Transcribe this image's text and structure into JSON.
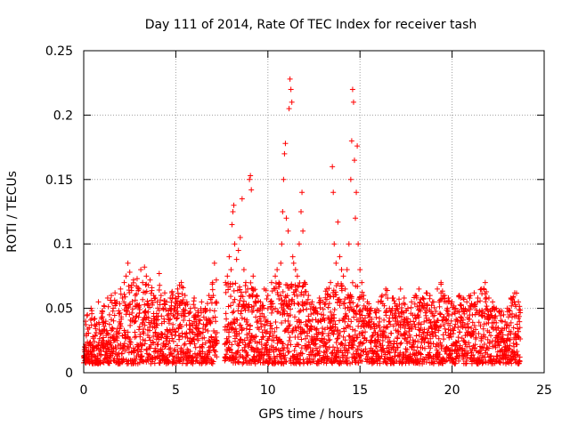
{
  "chart_data": {
    "type": "scatter",
    "title": "Day 111 of 2014, Rate Of TEC Index for receiver tash",
    "xlabel": "GPS time / hours",
    "ylabel": "ROTI / TECUs",
    "xlim": [
      0,
      25
    ],
    "ylim": [
      0,
      0.25
    ],
    "grid": true,
    "marker": "plus",
    "color": "#ff0000",
    "xticks": [
      0,
      5,
      10,
      15,
      20,
      25
    ],
    "xtick_labels": [
      "0",
      "5",
      "10",
      "15",
      "20",
      "25"
    ],
    "yticks": [
      0,
      0.05,
      0.1,
      0.15,
      0.2,
      0.25
    ],
    "ytick_labels": [
      "0",
      "0.05",
      "0.1",
      "0.15",
      "0.2",
      "0.25"
    ],
    "series": [
      {
        "name": "ROTI",
        "points": [
          [
            0.05,
            0.02
          ],
          [
            0.1,
            0.04
          ],
          [
            0.15,
            0.03
          ],
          [
            0.2,
            0.045
          ],
          [
            0.3,
            0.035
          ],
          [
            0.4,
            0.05
          ],
          [
            0.5,
            0.028
          ],
          [
            0.6,
            0.042
          ],
          [
            0.7,
            0.038
          ],
          [
            0.8,
            0.055
          ],
          [
            0.9,
            0.03
          ],
          [
            1.0,
            0.048
          ],
          [
            1.1,
            0.052
          ],
          [
            1.2,
            0.04
          ],
          [
            1.3,
            0.058
          ],
          [
            1.4,
            0.045
          ],
          [
            1.5,
            0.06
          ],
          [
            1.6,
            0.05
          ],
          [
            1.7,
            0.062
          ],
          [
            1.8,
            0.055
          ],
          [
            1.9,
            0.048
          ],
          [
            2.0,
            0.065
          ],
          [
            2.1,
            0.058
          ],
          [
            2.2,
            0.07
          ],
          [
            2.3,
            0.075
          ],
          [
            2.4,
            0.085
          ],
          [
            2.5,
            0.078
          ],
          [
            2.6,
            0.068
          ],
          [
            2.7,
            0.072
          ],
          [
            2.8,
            0.06
          ],
          [
            2.9,
            0.073
          ],
          [
            3.0,
            0.065
          ],
          [
            3.1,
            0.08
          ],
          [
            3.2,
            0.07
          ],
          [
            3.3,
            0.082
          ],
          [
            3.4,
            0.075
          ],
          [
            3.5,
            0.068
          ],
          [
            3.6,
            0.072
          ],
          [
            3.7,
            0.066
          ],
          [
            3.8,
            0.06
          ],
          [
            3.9,
            0.058
          ],
          [
            4.0,
            0.055
          ],
          [
            4.1,
            0.077
          ],
          [
            4.2,
            0.06
          ],
          [
            4.3,
            0.05
          ],
          [
            4.4,
            0.062
          ],
          [
            4.5,
            0.055
          ],
          [
            4.6,
            0.048
          ],
          [
            4.7,
            0.058
          ],
          [
            4.8,
            0.063
          ],
          [
            4.9,
            0.05
          ],
          [
            5.0,
            0.058
          ],
          [
            5.1,
            0.065
          ],
          [
            5.2,
            0.068
          ],
          [
            5.3,
            0.07
          ],
          [
            5.4,
            0.066
          ],
          [
            5.5,
            0.06
          ],
          [
            5.6,
            0.055
          ],
          [
            5.8,
            0.05
          ],
          [
            6.0,
            0.058
          ],
          [
            6.2,
            0.048
          ],
          [
            6.4,
            0.055
          ],
          [
            6.6,
            0.05
          ],
          [
            6.8,
            0.06
          ],
          [
            7.0,
            0.07
          ],
          [
            7.1,
            0.085
          ],
          [
            7.2,
            0.072
          ],
          [
            7.7,
            0.07
          ],
          [
            7.8,
            0.075
          ],
          [
            7.9,
            0.09
          ],
          [
            8.0,
            0.08
          ],
          [
            8.05,
            0.115
          ],
          [
            8.1,
            0.125
          ],
          [
            8.15,
            0.13
          ],
          [
            8.2,
            0.1
          ],
          [
            8.3,
            0.088
          ],
          [
            8.4,
            0.095
          ],
          [
            8.5,
            0.105
          ],
          [
            8.6,
            0.135
          ],
          [
            8.7,
            0.08
          ],
          [
            8.8,
            0.07
          ],
          [
            8.9,
            0.065
          ],
          [
            9.0,
            0.15
          ],
          [
            9.05,
            0.153
          ],
          [
            9.1,
            0.142
          ],
          [
            9.2,
            0.075
          ],
          [
            9.4,
            0.06
          ],
          [
            9.6,
            0.055
          ],
          [
            9.8,
            0.065
          ],
          [
            10.0,
            0.06
          ],
          [
            10.2,
            0.07
          ],
          [
            10.4,
            0.075
          ],
          [
            10.5,
            0.08
          ],
          [
            10.6,
            0.07
          ],
          [
            10.7,
            0.085
          ],
          [
            10.75,
            0.1
          ],
          [
            10.8,
            0.125
          ],
          [
            10.85,
            0.15
          ],
          [
            10.9,
            0.17
          ],
          [
            10.95,
            0.178
          ],
          [
            11.0,
            0.12
          ],
          [
            11.1,
            0.11
          ],
          [
            11.15,
            0.205
          ],
          [
            11.2,
            0.228
          ],
          [
            11.25,
            0.22
          ],
          [
            11.3,
            0.21
          ],
          [
            11.35,
            0.09
          ],
          [
            11.4,
            0.085
          ],
          [
            11.5,
            0.08
          ],
          [
            11.6,
            0.075
          ],
          [
            11.7,
            0.1
          ],
          [
            11.8,
            0.125
          ],
          [
            11.85,
            0.14
          ],
          [
            11.9,
            0.11
          ],
          [
            12.0,
            0.07
          ],
          [
            12.2,
            0.06
          ],
          [
            12.4,
            0.055
          ],
          [
            12.6,
            0.05
          ],
          [
            12.8,
            0.058
          ],
          [
            13.0,
            0.055
          ],
          [
            13.2,
            0.065
          ],
          [
            13.4,
            0.07
          ],
          [
            13.5,
            0.16
          ],
          [
            13.55,
            0.14
          ],
          [
            13.6,
            0.1
          ],
          [
            13.7,
            0.085
          ],
          [
            13.8,
            0.117
          ],
          [
            13.9,
            0.09
          ],
          [
            14.0,
            0.08
          ],
          [
            14.1,
            0.075
          ],
          [
            14.2,
            0.065
          ],
          [
            14.3,
            0.08
          ],
          [
            14.4,
            0.1
          ],
          [
            14.5,
            0.15
          ],
          [
            14.55,
            0.18
          ],
          [
            14.6,
            0.22
          ],
          [
            14.65,
            0.21
          ],
          [
            14.7,
            0.165
          ],
          [
            14.75,
            0.12
          ],
          [
            14.8,
            0.14
          ],
          [
            14.85,
            0.176
          ],
          [
            14.9,
            0.1
          ],
          [
            15.0,
            0.08
          ],
          [
            15.1,
            0.07
          ],
          [
            15.2,
            0.06
          ],
          [
            15.4,
            0.055
          ],
          [
            15.6,
            0.05
          ],
          [
            15.8,
            0.048
          ],
          [
            16.0,
            0.055
          ],
          [
            16.2,
            0.06
          ],
          [
            16.4,
            0.065
          ],
          [
            16.6,
            0.05
          ],
          [
            16.8,
            0.058
          ],
          [
            17.0,
            0.052
          ],
          [
            17.2,
            0.065
          ],
          [
            17.4,
            0.058
          ],
          [
            17.6,
            0.05
          ],
          [
            17.8,
            0.055
          ],
          [
            18.0,
            0.06
          ],
          [
            18.2,
            0.065
          ],
          [
            18.4,
            0.058
          ],
          [
            18.6,
            0.062
          ],
          [
            18.8,
            0.06
          ],
          [
            19.0,
            0.055
          ],
          [
            19.2,
            0.065
          ],
          [
            19.4,
            0.07
          ],
          [
            19.6,
            0.06
          ],
          [
            19.8,
            0.058
          ],
          [
            20.0,
            0.055
          ],
          [
            20.2,
            0.05
          ],
          [
            20.4,
            0.06
          ],
          [
            20.6,
            0.058
          ],
          [
            20.8,
            0.055
          ],
          [
            21.0,
            0.06
          ],
          [
            21.2,
            0.062
          ],
          [
            21.4,
            0.058
          ],
          [
            21.6,
            0.065
          ],
          [
            21.8,
            0.07
          ],
          [
            22.0,
            0.058
          ],
          [
            22.2,
            0.055
          ],
          [
            22.4,
            0.05
          ],
          [
            22.6,
            0.048
          ],
          [
            22.8,
            0.045
          ],
          [
            23.0,
            0.05
          ],
          [
            23.2,
            0.058
          ],
          [
            23.4,
            0.062
          ],
          [
            23.6,
            0.055
          ]
        ]
      }
    ]
  }
}
